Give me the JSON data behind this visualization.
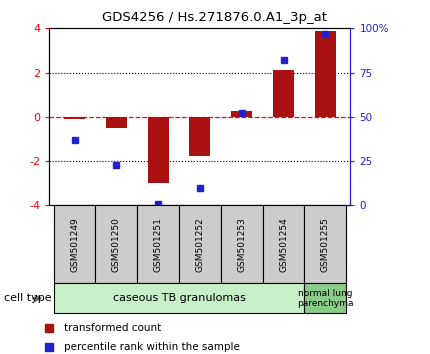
{
  "title": "GDS4256 / Hs.271876.0.A1_3p_at",
  "samples": [
    "GSM501249",
    "GSM501250",
    "GSM501251",
    "GSM501252",
    "GSM501253",
    "GSM501254",
    "GSM501255"
  ],
  "transformed_count": [
    -0.08,
    -0.5,
    -3.0,
    -1.75,
    0.28,
    2.1,
    3.9
  ],
  "percentile_rank": [
    37,
    23,
    1,
    10,
    52,
    82,
    97
  ],
  "ylim": [
    -4,
    4
  ],
  "yticks_left": [
    -4,
    -2,
    0,
    2,
    4
  ],
  "yticks_right": [
    0,
    25,
    50,
    75,
    100
  ],
  "bar_color": "#aa1111",
  "dot_color": "#2222cc",
  "group1_label": "caseous TB granulomas",
  "group2_label": "normal lung\nparenchyma",
  "group1_color": "#c8f0c8",
  "group2_color": "#88cc88",
  "cell_type_label": "cell type",
  "legend_bar_label": "transformed count",
  "legend_dot_label": "percentile rank within the sample",
  "bar_width": 0.5,
  "sample_box_color": "#cccccc"
}
